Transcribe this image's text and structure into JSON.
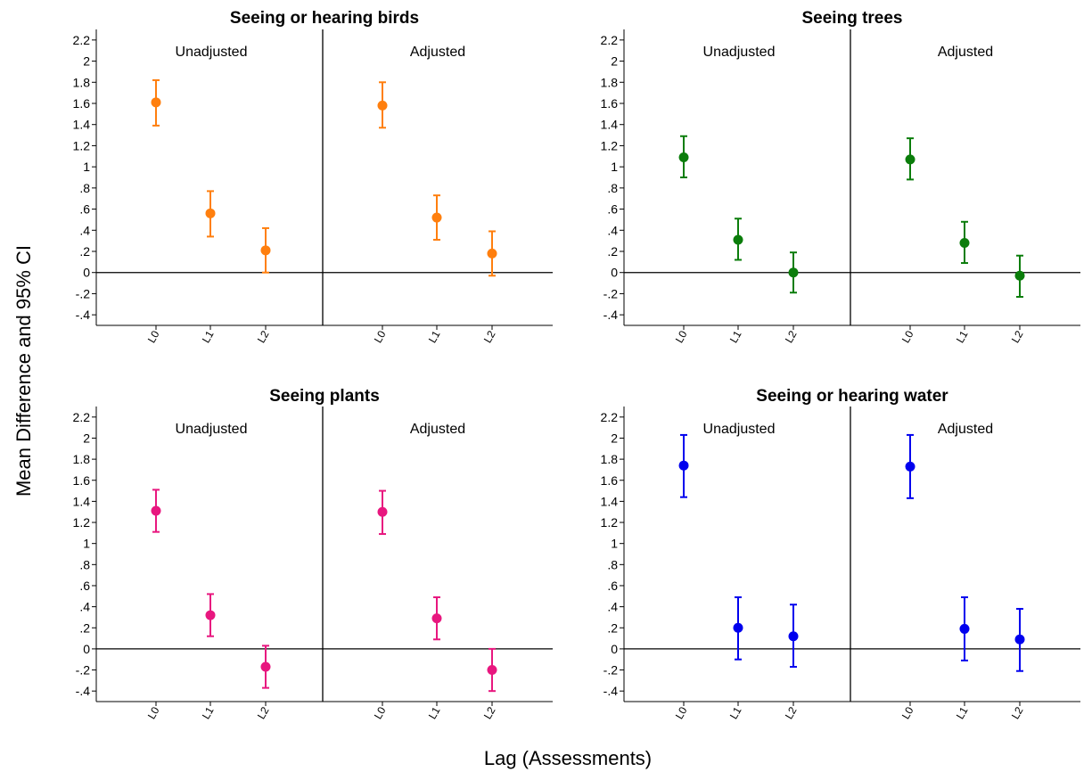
{
  "figure": {
    "ylabel": "Mean Difference and 95% CI",
    "xlabel": "Lag (Assessments)"
  },
  "chart_data": [
    {
      "type": "scatter",
      "title": "Seeing or hearing birds",
      "color": "#ff7f0e",
      "ylim": [
        -0.5,
        2.3
      ],
      "yticks": [
        -0.4,
        -0.2,
        0,
        0.2,
        0.4,
        0.6,
        0.8,
        1,
        1.2,
        1.4,
        1.6,
        1.8,
        2,
        2.2
      ],
      "ytick_labels": [
        "-.4",
        "-.2",
        "0",
        ".2",
        ".4",
        ".6",
        ".8",
        "1",
        "1.2",
        "1.4",
        "1.6",
        "1.8",
        "2",
        "2.2"
      ],
      "categories": [
        "L0",
        "L1",
        "L2"
      ],
      "sections": [
        {
          "label": "Unadjusted",
          "mean": [
            1.61,
            0.56,
            0.21
          ],
          "lower": [
            1.39,
            0.34,
            0.0
          ],
          "upper": [
            1.82,
            0.77,
            0.42
          ]
        },
        {
          "label": "Adjusted",
          "mean": [
            1.58,
            0.52,
            0.18
          ],
          "lower": [
            1.37,
            0.31,
            -0.03
          ],
          "upper": [
            1.8,
            0.73,
            0.39
          ]
        }
      ]
    },
    {
      "type": "scatter",
      "title": "Seeing trees",
      "color": "#0b7d0b",
      "ylim": [
        -0.5,
        2.3
      ],
      "yticks": [
        -0.4,
        -0.2,
        0,
        0.2,
        0.4,
        0.6,
        0.8,
        1,
        1.2,
        1.4,
        1.6,
        1.8,
        2,
        2.2
      ],
      "ytick_labels": [
        "-.4",
        "-.2",
        "0",
        ".2",
        ".4",
        ".6",
        ".8",
        "1",
        "1.2",
        "1.4",
        "1.6",
        "1.8",
        "2",
        "2.2"
      ],
      "categories": [
        "L0",
        "L1",
        "L2"
      ],
      "sections": [
        {
          "label": "Unadjusted",
          "mean": [
            1.09,
            0.31,
            0.0
          ],
          "lower": [
            0.9,
            0.12,
            -0.19
          ],
          "upper": [
            1.29,
            0.51,
            0.19
          ]
        },
        {
          "label": "Adjusted",
          "mean": [
            1.07,
            0.28,
            -0.03
          ],
          "lower": [
            0.88,
            0.09,
            -0.23
          ],
          "upper": [
            1.27,
            0.48,
            0.16
          ]
        }
      ]
    },
    {
      "type": "scatter",
      "title": "Seeing plants",
      "color": "#e8177f",
      "ylim": [
        -0.5,
        2.3
      ],
      "yticks": [
        -0.4,
        -0.2,
        0,
        0.2,
        0.4,
        0.6,
        0.8,
        1,
        1.2,
        1.4,
        1.6,
        1.8,
        2,
        2.2
      ],
      "ytick_labels": [
        "-.4",
        "-.2",
        "0",
        ".2",
        ".4",
        ".6",
        ".8",
        "1",
        "1.2",
        "1.4",
        "1.6",
        "1.8",
        "2",
        "2.2"
      ],
      "categories": [
        "L0",
        "L1",
        "L2"
      ],
      "sections": [
        {
          "label": "Unadjusted",
          "mean": [
            1.31,
            0.32,
            -0.17
          ],
          "lower": [
            1.11,
            0.12,
            -0.37
          ],
          "upper": [
            1.51,
            0.52,
            0.03
          ]
        },
        {
          "label": "Adjusted",
          "mean": [
            1.3,
            0.29,
            -0.2
          ],
          "lower": [
            1.09,
            0.09,
            -0.4
          ],
          "upper": [
            1.5,
            0.49,
            0.0
          ]
        }
      ]
    },
    {
      "type": "scatter",
      "title": "Seeing or hearing water",
      "color": "#0000ee",
      "ylim": [
        -0.5,
        2.3
      ],
      "yticks": [
        -0.4,
        -0.2,
        0,
        0.2,
        0.4,
        0.6,
        0.8,
        1,
        1.2,
        1.4,
        1.6,
        1.8,
        2,
        2.2
      ],
      "ytick_labels": [
        "-.4",
        "-.2",
        "0",
        ".2",
        ".4",
        ".6",
        ".8",
        "1",
        "1.2",
        "1.4",
        "1.6",
        "1.8",
        "2",
        "2.2"
      ],
      "categories": [
        "L0",
        "L1",
        "L2"
      ],
      "sections": [
        {
          "label": "Unadjusted",
          "mean": [
            1.74,
            0.2,
            0.12
          ],
          "lower": [
            1.44,
            -0.1,
            -0.17
          ],
          "upper": [
            2.03,
            0.49,
            0.42
          ]
        },
        {
          "label": "Adjusted",
          "mean": [
            1.73,
            0.19,
            0.09
          ],
          "lower": [
            1.43,
            -0.11,
            -0.21
          ],
          "upper": [
            2.03,
            0.49,
            0.38
          ]
        }
      ]
    }
  ]
}
